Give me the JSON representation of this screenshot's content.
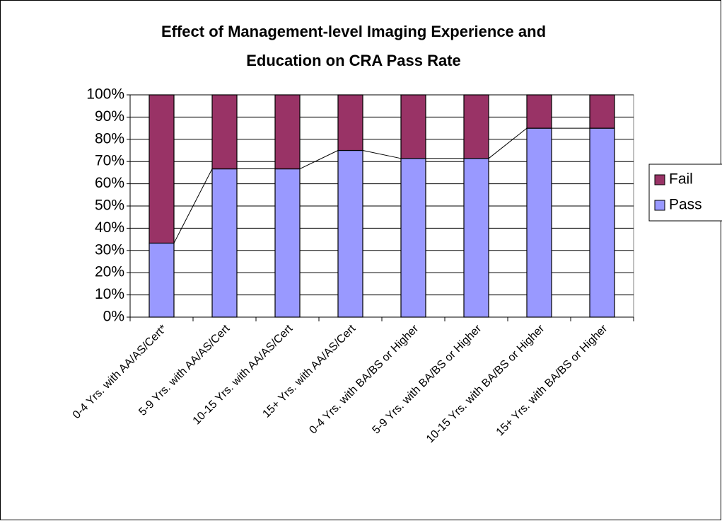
{
  "chart_data": {
    "type": "stacked_bar",
    "title": [
      "Effect of Management-level Imaging Experience and",
      "Education on CRA Pass Rate"
    ],
    "categories": [
      "0-4 Yrs. with AA/AS/Cert*",
      "5-9 Yrs. with AA/AS/Cert",
      "10-15 Yrs. with AA/AS/Cert",
      "15+ Yrs. with AA/AS/Cert",
      "0-4 Yrs. with BA/BS or Higher",
      "5-9 Yrs. with BA/BS or Higher",
      "10-15 Yrs. with BA/BS or Higher",
      "15+ Yrs. with BA/BS or Higher"
    ],
    "series": [
      {
        "name": "Pass",
        "color": "#9999ff",
        "values": [
          33.3,
          66.7,
          66.7,
          75,
          71.4,
          71.4,
          85,
          85
        ]
      },
      {
        "name": "Fail",
        "color": "#993366",
        "values": [
          66.7,
          33.3,
          33.3,
          25,
          28.6,
          28.6,
          15,
          15
        ]
      }
    ],
    "ylim": [
      0,
      100
    ],
    "yticks": [
      {
        "value": 0,
        "label": "0%"
      },
      {
        "value": 10,
        "label": "10%"
      },
      {
        "value": 20,
        "label": "20%"
      },
      {
        "value": 30,
        "label": "30%"
      },
      {
        "value": 40,
        "label": "40%"
      },
      {
        "value": 50,
        "label": "50%"
      },
      {
        "value": 60,
        "label": "60%"
      },
      {
        "value": 70,
        "label": "70%"
      },
      {
        "value": 80,
        "label": "80%"
      },
      {
        "value": 90,
        "label": "90%"
      },
      {
        "value": 100,
        "label": "100%"
      }
    ],
    "grid": true,
    "series_lines": true,
    "legend": "right"
  }
}
